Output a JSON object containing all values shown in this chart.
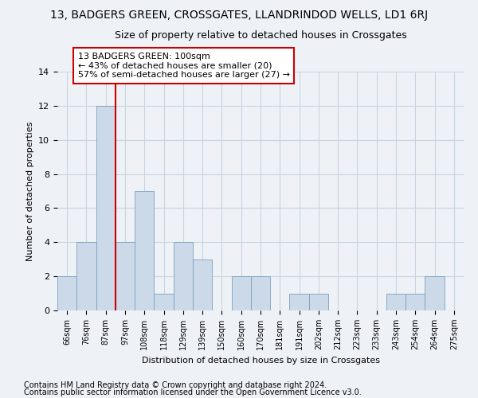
{
  "title": "13, BADGERS GREEN, CROSSGATES, LLANDRINDOD WELLS, LD1 6RJ",
  "subtitle": "Size of property relative to detached houses in Crossgates",
  "xlabel": "Distribution of detached houses by size in Crossgates",
  "ylabel": "Number of detached properties",
  "bar_color": "#ccd9e8",
  "bar_edge_color": "#7aa0c0",
  "categories": [
    "66sqm",
    "76sqm",
    "87sqm",
    "97sqm",
    "108sqm",
    "118sqm",
    "129sqm",
    "139sqm",
    "150sqm",
    "160sqm",
    "170sqm",
    "181sqm",
    "191sqm",
    "202sqm",
    "212sqm",
    "223sqm",
    "233sqm",
    "243sqm",
    "254sqm",
    "264sqm",
    "275sqm"
  ],
  "values": [
    2,
    4,
    12,
    4,
    7,
    1,
    4,
    3,
    0,
    2,
    2,
    0,
    1,
    1,
    0,
    0,
    0,
    1,
    1,
    2,
    0
  ],
  "ylim": [
    0,
    14
  ],
  "yticks": [
    0,
    2,
    4,
    6,
    8,
    10,
    12,
    14
  ],
  "prop_line_bar_index": 2,
  "annotation_text_line1": "13 BADGERS GREEN: 100sqm",
  "annotation_text_line2": "← 43% of detached houses are smaller (20)",
  "annotation_text_line3": "57% of semi-detached houses are larger (27) →",
  "annotation_box_color": "#ffffff",
  "annotation_border_color": "#cc0000",
  "footer_line1": "Contains HM Land Registry data © Crown copyright and database right 2024.",
  "footer_line2": "Contains public sector information licensed under the Open Government Licence v3.0.",
  "background_color": "#eef2f7",
  "grid_color": "#c8d4e0",
  "property_line_color": "#cc0000",
  "title_fontsize": 10,
  "subtitle_fontsize": 9,
  "axis_fontsize": 8,
  "tick_fontsize": 7,
  "footer_fontsize": 7,
  "annotation_fontsize": 8
}
